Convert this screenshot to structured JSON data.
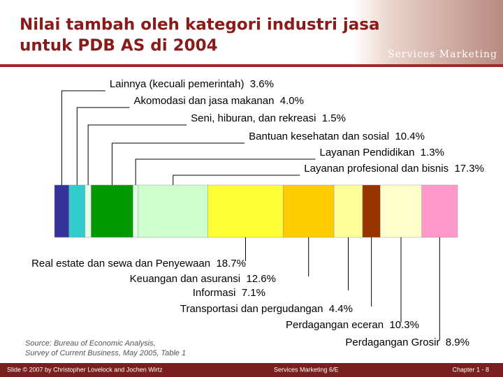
{
  "chart_data": {
    "type": "stacked_bar",
    "title": [
      "Nilai tambah oleh kategori industri jasa",
      "untuk PDB AS di 2004"
    ],
    "logo": "Services Marketing",
    "source": [
      "Source: Bureau of Economic Analysis,",
      "Survey of Current Business, May 2005, Table 1"
    ],
    "footer": [
      "Slide © 2007 by Christopher Lovelock and Jochen Wirtz",
      "Services Marketing 6/E",
      "Chapter 1 - 8"
    ],
    "series": [
      {
        "name": "Lainnya (kecuali pemerintah)",
        "color": "#333399",
        "values": [
          3.6
        ],
        "value_labels": [
          "3.6%"
        ]
      },
      {
        "name": "Akomodasi dan jasa makanan",
        "color": "#33cccc",
        "values": [
          4.0
        ],
        "value_labels": [
          "4.0%"
        ]
      },
      {
        "name": "Seni, hiburan, dan rekreasi",
        "color": "#e8fbe8",
        "values": [
          1.5
        ],
        "value_labels": [
          "1.5%"
        ]
      },
      {
        "name": "Bantuan kesehatan dan sosial",
        "color": "#009900",
        "values": [
          10.4
        ],
        "value_labels": [
          "10.4%"
        ]
      },
      {
        "name": "Layanan Pendidikan",
        "color": "#e0fbe0",
        "values": [
          1.3
        ],
        "value_labels": [
          "1.3%"
        ]
      },
      {
        "name": "Layanan profesional dan bisnis",
        "color": "#ccffcc",
        "values": [
          17.3
        ],
        "value_labels": [
          "17.3%"
        ]
      },
      {
        "name": "Real estate dan sewa dan Penyewaan",
        "color": "#ffff33",
        "values": [
          18.7
        ],
        "value_labels": [
          "18.7%"
        ]
      },
      {
        "name": "Keuangan dan asuransi",
        "color": "#ffcc00",
        "values": [
          12.6
        ],
        "value_labels": [
          "12.6%"
        ]
      },
      {
        "name": "Informasi",
        "color": "#ffff99",
        "values": [
          7.1
        ],
        "value_labels": [
          "7.1%"
        ]
      },
      {
        "name": "Transportasi dan pergudangan",
        "color": "#993300",
        "values": [
          4.4
        ],
        "value_labels": [
          "4.4%"
        ]
      },
      {
        "name": "Perdagangan eceran",
        "color": "#ffffcc",
        "values": [
          10.3
        ],
        "value_labels": [
          "10.3%"
        ]
      },
      {
        "name": "Perdagangan Grosir",
        "color": "#ff99cc",
        "values": [
          8.9
        ],
        "value_labels": [
          "8.9%"
        ]
      }
    ]
  }
}
